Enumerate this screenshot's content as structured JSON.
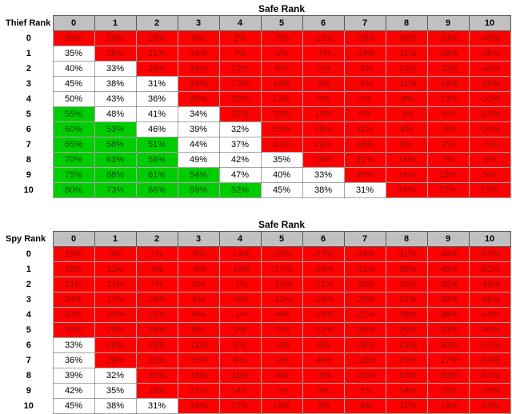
{
  "colors": {
    "header_bg": "#C0C0C0",
    "red_fill": "#FF0000",
    "red_text": "#8C1004",
    "green_fill": "#00CD00",
    "green_text": "#0B4A00",
    "white_fill": "#FFFFFF",
    "black_text": "#000000"
  },
  "color_rules": {
    "green_above": 50,
    "white_above": 30,
    "description": "cell green if value > 50, white if value > 30 and <= 50, red if value <= 30"
  },
  "chart_data": [
    {
      "type": "heatmap",
      "title": "Safe Rank",
      "row_axis_label": "Thief Rank",
      "col_labels": [
        "0",
        "1",
        "2",
        "3",
        "4",
        "5",
        "6",
        "7",
        "8",
        "9",
        "10"
      ],
      "row_labels": [
        "0",
        "1",
        "2",
        "3",
        "4",
        "5",
        "6",
        "7",
        "8",
        "9",
        "10"
      ],
      "unit": "%",
      "values": [
        [
          30,
          23,
          16,
          9,
          2,
          -5,
          -12,
          -19,
          -26,
          -33,
          -40
        ],
        [
          35,
          28,
          21,
          14,
          7,
          0,
          -7,
          -14,
          -21,
          -28,
          -35
        ],
        [
          40,
          33,
          26,
          19,
          12,
          5,
          -2,
          -9,
          -16,
          -23,
          -30
        ],
        [
          45,
          38,
          31,
          24,
          17,
          10,
          3,
          -4,
          -11,
          -18,
          -25
        ],
        [
          50,
          43,
          36,
          29,
          22,
          15,
          8,
          1,
          -6,
          -13,
          -20
        ],
        [
          55,
          48,
          41,
          34,
          27,
          20,
          13,
          6,
          -1,
          -8,
          -15
        ],
        [
          60,
          53,
          46,
          39,
          32,
          25,
          18,
          11,
          4,
          -3,
          -10
        ],
        [
          65,
          58,
          51,
          44,
          37,
          30,
          23,
          16,
          9,
          2,
          -5
        ],
        [
          70,
          63,
          56,
          49,
          42,
          35,
          28,
          21,
          14,
          7,
          0
        ],
        [
          75,
          68,
          61,
          54,
          47,
          40,
          33,
          26,
          19,
          12,
          5
        ],
        [
          80,
          73,
          66,
          59,
          52,
          45,
          38,
          31,
          24,
          17,
          10
        ]
      ]
    },
    {
      "type": "heatmap",
      "title": "Safe Rank",
      "row_axis_label": "Spy Rank",
      "col_labels": [
        "0",
        "1",
        "2",
        "3",
        "4",
        "5",
        "6",
        "7",
        "8",
        "9",
        "10"
      ],
      "row_labels": [
        "0",
        "1",
        "2",
        "3",
        "4",
        "5",
        "6",
        "7",
        "8",
        "9",
        "10"
      ],
      "unit": "%",
      "values": [
        [
          15,
          8,
          1,
          -6,
          -13,
          -20,
          -27,
          -34,
          -41,
          -48,
          -55
        ],
        [
          18,
          11,
          4,
          -3,
          -10,
          -17,
          -24,
          -31,
          -38,
          -45,
          -52
        ],
        [
          21,
          14,
          7,
          0,
          -7,
          -14,
          -21,
          -28,
          -35,
          -42,
          -49
        ],
        [
          24,
          17,
          10,
          3,
          -4,
          -11,
          -18,
          -25,
          -32,
          -39,
          -46
        ],
        [
          27,
          20,
          13,
          6,
          -1,
          -8,
          -15,
          -22,
          -29,
          -36,
          -43
        ],
        [
          30,
          23,
          16,
          9,
          2,
          -5,
          -12,
          -19,
          -26,
          -33,
          -40
        ],
        [
          33,
          26,
          19,
          12,
          5,
          -2,
          -9,
          -16,
          -23,
          -30,
          -37
        ],
        [
          36,
          29,
          22,
          15,
          8,
          1,
          -6,
          -13,
          -20,
          -27,
          -34
        ],
        [
          39,
          32,
          25,
          18,
          11,
          4,
          -3,
          -10,
          -17,
          -24,
          -31
        ],
        [
          42,
          35,
          28,
          21,
          14,
          7,
          0,
          -7,
          -14,
          -21,
          -28
        ],
        [
          45,
          38,
          31,
          24,
          17,
          10,
          3,
          -4,
          -11,
          -18,
          -25
        ]
      ]
    }
  ]
}
